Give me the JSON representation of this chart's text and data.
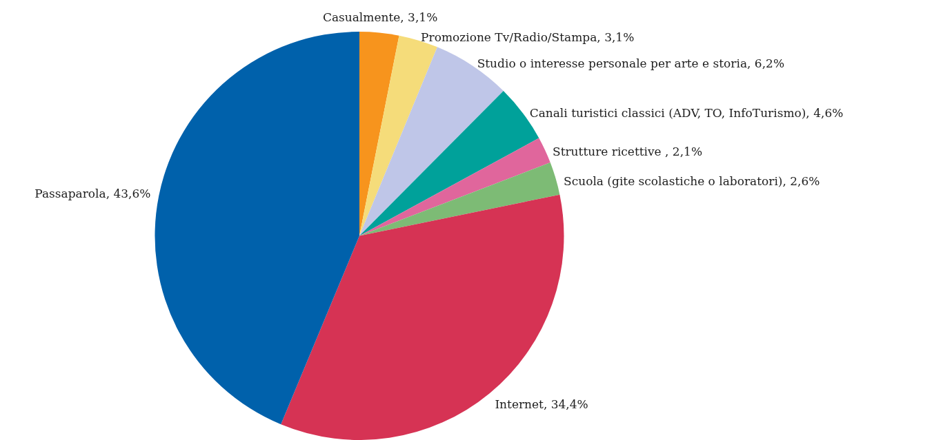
{
  "chart_data": {
    "type": "pie",
    "categories": [
      "Casualmente",
      "Promozione Tv/Radio/Stampa",
      "Studio o interesse personale per arte e storia",
      "Canali turistici classici (ADV, TO, InfoTurismo)",
      "Strutture ricettive ",
      "Scuola (gite scolastiche o laboratori)",
      "Internet",
      "Passaparola"
    ],
    "values": [
      3.1,
      3.1,
      6.2,
      4.6,
      2.1,
      2.6,
      34.4,
      43.6
    ],
    "value_labels": [
      "3,1%",
      "3,1%",
      "6,2%",
      "4,6%",
      "2,1%",
      "2,6%",
      "34,4%",
      "43,6%"
    ],
    "colors": [
      "#f7941d",
      "#f5dc7a",
      "#bfc6e8",
      "#00a19a",
      "#e0669c",
      "#7dbb75",
      "#d63354",
      "#0061ab"
    ],
    "legend": false
  }
}
